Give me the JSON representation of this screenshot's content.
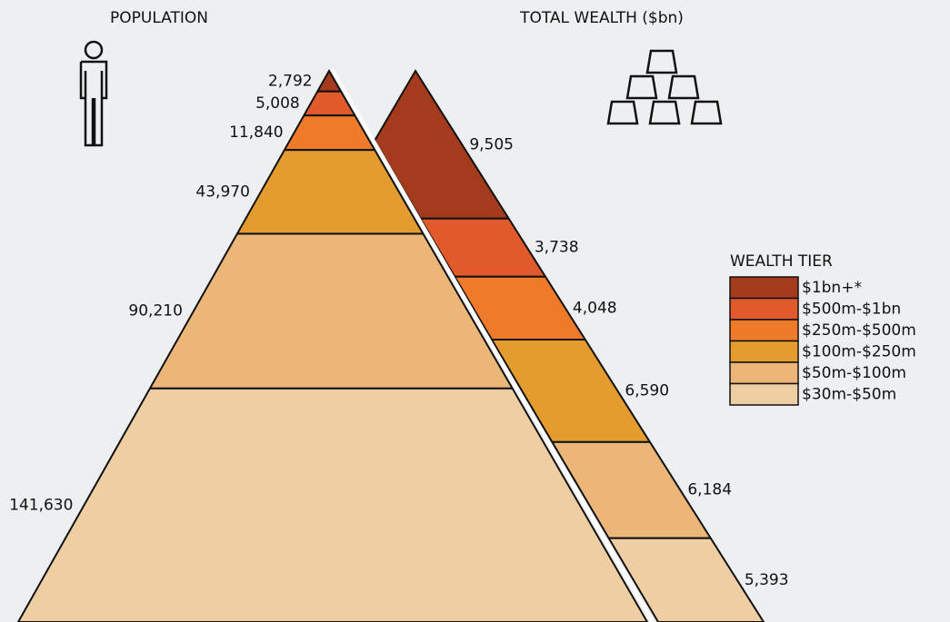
{
  "chart_data": {
    "type": "pyramid",
    "legend_title": "WEALTH TIER",
    "categories": [
      "$1bn+*",
      "$500m-$1bn",
      "$250m-$500m",
      "$100m-$250m",
      "$50m-$100m",
      "$30m-$50m"
    ],
    "colors": [
      "#a33b1c",
      "#e05a2b",
      "#ef7a2a",
      "#e59c2f",
      "#ebb677",
      "#efcea4"
    ],
    "series": [
      {
        "name": "POPULATION",
        "values": [
          2792,
          5008,
          11840,
          43970,
          90210,
          141630
        ],
        "value_labels": [
          "2,792",
          "5,008",
          "11,840",
          "43,970",
          "90,210",
          "141,630"
        ]
      },
      {
        "name": "TOTAL WEALTH ($bn)",
        "values": [
          9505,
          3738,
          4048,
          6590,
          6184,
          5393
        ],
        "value_labels": [
          "9,505",
          "3,738",
          "4,048",
          "6,590",
          "6,184",
          "5,393"
        ]
      }
    ]
  }
}
